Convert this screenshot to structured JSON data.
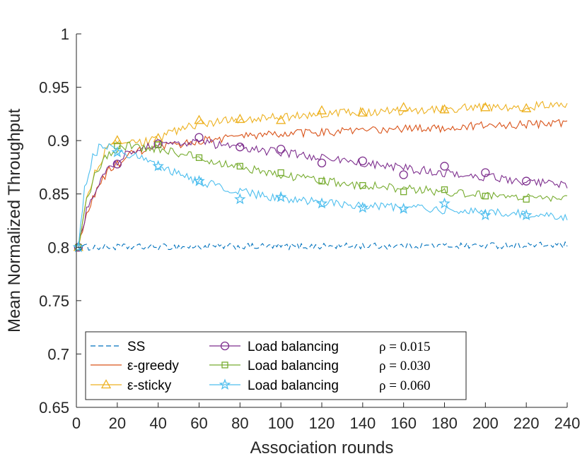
{
  "chart_data": {
    "type": "line",
    "title": "",
    "xlabel": "Association rounds",
    "ylabel": "Mean Normalized Throughput",
    "xlim": [
      0,
      240
    ],
    "ylim": [
      0.65,
      1.0
    ],
    "xticks": [
      0,
      20,
      40,
      60,
      80,
      100,
      120,
      140,
      160,
      180,
      200,
      220,
      240
    ],
    "xtick_labels": [
      "0",
      "20",
      "40",
      "60",
      "80",
      "100",
      "120",
      "140",
      "160",
      "180",
      "200",
      "220",
      "240"
    ],
    "yticks": [
      0.65,
      0.7,
      0.75,
      0.8,
      0.85,
      0.9,
      0.95,
      1.0
    ],
    "ytick_labels": [
      "0.65",
      "0.7",
      "0.75",
      "0.8",
      "0.85",
      "0.9",
      "0.95",
      "1"
    ],
    "grid": false,
    "legend_position": "bottom-left",
    "series": [
      {
        "name": "SS",
        "rho": "",
        "color": "#0072BD",
        "dash": "dashed",
        "marker": "none",
        "x": [
          1,
          240
        ],
        "y": [
          0.8,
          0.802
        ],
        "noise": 0.003
      },
      {
        "name": "ε-greedy",
        "rho": "",
        "color": "#D95319",
        "dash": "solid",
        "marker": "none",
        "x": [
          1,
          5,
          10,
          15,
          20,
          25,
          30,
          40,
          50,
          60,
          70,
          80,
          100,
          120,
          140,
          160,
          180,
          200,
          220,
          240
        ],
        "y": [
          0.8,
          0.83,
          0.855,
          0.87,
          0.878,
          0.885,
          0.89,
          0.893,
          0.896,
          0.9,
          0.902,
          0.904,
          0.906,
          0.908,
          0.909,
          0.911,
          0.912,
          0.914,
          0.915,
          0.917
        ],
        "noise": 0.004
      },
      {
        "name": "ε-sticky",
        "rho": "",
        "color": "#EDB120",
        "dash": "solid",
        "marker": "triangle",
        "x": [
          1,
          5,
          10,
          15,
          20,
          25,
          30,
          40,
          50,
          60,
          70,
          80,
          100,
          120,
          140,
          160,
          180,
          200,
          220,
          240
        ],
        "y": [
          0.8,
          0.845,
          0.875,
          0.892,
          0.898,
          0.898,
          0.897,
          0.902,
          0.91,
          0.916,
          0.918,
          0.92,
          0.922,
          0.925,
          0.927,
          0.928,
          0.93,
          0.931,
          0.932,
          0.934
        ],
        "noise": 0.004,
        "marker_x": [
          1,
          20,
          40,
          60,
          80,
          100,
          120,
          140,
          160,
          180,
          200,
          220
        ],
        "marker_y": [
          0.8,
          0.9,
          0.902,
          0.919,
          0.92,
          0.919,
          0.928,
          0.926,
          0.931,
          0.929,
          0.931,
          0.93
        ]
      },
      {
        "name": "Load balancing",
        "rho": "ρ = 0.015",
        "color": "#7E2F8E",
        "dash": "solid",
        "marker": "circle",
        "x": [
          1,
          5,
          10,
          15,
          20,
          25,
          30,
          40,
          50,
          60,
          70,
          80,
          100,
          120,
          140,
          160,
          180,
          200,
          220,
          240
        ],
        "y": [
          0.8,
          0.835,
          0.858,
          0.874,
          0.88,
          0.888,
          0.893,
          0.896,
          0.898,
          0.899,
          0.896,
          0.893,
          0.889,
          0.884,
          0.879,
          0.874,
          0.87,
          0.866,
          0.862,
          0.858
        ],
        "noise": 0.004,
        "marker_x": [
          1,
          20,
          40,
          60,
          80,
          100,
          120,
          140,
          160,
          180,
          200,
          220
        ],
        "marker_y": [
          0.8,
          0.878,
          0.897,
          0.903,
          0.894,
          0.892,
          0.879,
          0.881,
          0.868,
          0.876,
          0.87,
          0.862
        ]
      },
      {
        "name": "Load balancing",
        "rho": "ρ = 0.030",
        "color": "#77AC30",
        "dash": "solid",
        "marker": "square",
        "x": [
          1,
          5,
          10,
          15,
          20,
          25,
          30,
          40,
          50,
          60,
          70,
          80,
          100,
          120,
          140,
          160,
          180,
          200,
          220,
          240
        ],
        "y": [
          0.8,
          0.845,
          0.872,
          0.886,
          0.893,
          0.895,
          0.894,
          0.892,
          0.888,
          0.884,
          0.879,
          0.875,
          0.868,
          0.862,
          0.858,
          0.855,
          0.852,
          0.849,
          0.847,
          0.845
        ],
        "noise": 0.004,
        "marker_x": [
          1,
          20,
          40,
          60,
          80,
          100,
          120,
          140,
          160,
          180,
          200,
          220
        ],
        "marker_y": [
          0.8,
          0.895,
          0.896,
          0.884,
          0.876,
          0.87,
          0.862,
          0.858,
          0.852,
          0.854,
          0.848,
          0.845
        ]
      },
      {
        "name": "Load balancing",
        "rho": "ρ = 0.060",
        "color": "#4DBEEE",
        "dash": "solid",
        "marker": "star",
        "x": [
          1,
          4,
          8,
          12,
          16,
          20,
          30,
          40,
          50,
          60,
          70,
          80,
          100,
          120,
          140,
          160,
          180,
          200,
          220,
          240
        ],
        "y": [
          0.8,
          0.855,
          0.884,
          0.896,
          0.894,
          0.89,
          0.884,
          0.876,
          0.868,
          0.862,
          0.857,
          0.852,
          0.846,
          0.842,
          0.839,
          0.837,
          0.835,
          0.833,
          0.831,
          0.828
        ],
        "noise": 0.004,
        "marker_x": [
          1,
          20,
          40,
          60,
          80,
          100,
          120,
          140,
          160,
          180,
          200,
          220
        ],
        "marker_y": [
          0.8,
          0.889,
          0.876,
          0.862,
          0.845,
          0.847,
          0.841,
          0.837,
          0.836,
          0.841,
          0.83,
          0.83
        ]
      }
    ]
  }
}
